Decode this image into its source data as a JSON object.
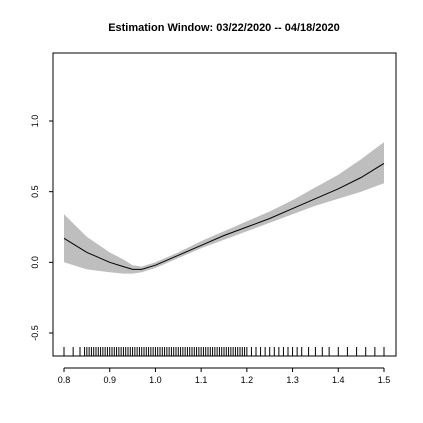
{
  "chart_data": {
    "type": "line",
    "title": "Estimation Window: 03/22/2020 -- 04/18/2020",
    "xlabel": "",
    "ylabel": "",
    "xlim": [
      0.8,
      1.5
    ],
    "ylim": [
      -0.5,
      1.0
    ],
    "x_ticks": [
      "0.8",
      "0.9",
      "1.0",
      "1.1",
      "1.2",
      "1.3",
      "1.4",
      "1.5"
    ],
    "y_ticks": [
      "-0.5",
      "0.0",
      "0.5",
      "1.0"
    ],
    "grid": false,
    "series": [
      {
        "x": [
          0.8,
          0.85,
          0.9,
          0.93,
          0.95,
          0.97,
          1.0,
          1.05,
          1.1,
          1.15,
          1.2,
          1.25,
          1.3,
          1.35,
          1.4,
          1.45,
          1.5
        ],
        "y": [
          0.17,
          0.07,
          0.0,
          -0.03,
          -0.05,
          -0.05,
          -0.02,
          0.05,
          0.12,
          0.19,
          0.25,
          0.31,
          0.38,
          0.45,
          0.52,
          0.6,
          0.7
        ],
        "lower": [
          0.0,
          -0.05,
          -0.07,
          -0.08,
          -0.08,
          -0.07,
          -0.04,
          0.03,
          0.1,
          0.16,
          0.22,
          0.28,
          0.34,
          0.4,
          0.45,
          0.5,
          0.56
        ],
        "upper": [
          0.34,
          0.18,
          0.07,
          0.02,
          -0.02,
          -0.03,
          0.0,
          0.07,
          0.15,
          0.22,
          0.29,
          0.36,
          0.44,
          0.53,
          0.62,
          0.73,
          0.85
        ]
      }
    ],
    "rug": [
      0.8,
      0.82,
      0.835,
      0.845,
      0.85,
      0.855,
      0.86,
      0.865,
      0.87,
      0.875,
      0.88,
      0.885,
      0.89,
      0.895,
      0.9,
      0.905,
      0.91,
      0.915,
      0.92,
      0.925,
      0.93,
      0.935,
      0.94,
      0.945,
      0.95,
      0.955,
      0.96,
      0.965,
      0.97,
      0.975,
      0.98,
      0.985,
      0.99,
      0.995,
      1.0,
      1.005,
      1.01,
      1.015,
      1.02,
      1.025,
      1.03,
      1.035,
      1.04,
      1.045,
      1.05,
      1.055,
      1.06,
      1.065,
      1.07,
      1.075,
      1.08,
      1.085,
      1.09,
      1.095,
      1.1,
      1.105,
      1.11,
      1.115,
      1.12,
      1.125,
      1.13,
      1.135,
      1.14,
      1.145,
      1.15,
      1.155,
      1.16,
      1.165,
      1.17,
      1.175,
      1.18,
      1.185,
      1.19,
      1.195,
      1.2,
      1.21,
      1.22,
      1.23,
      1.24,
      1.25,
      1.26,
      1.27,
      1.28,
      1.29,
      1.3,
      1.31,
      1.32,
      1.335,
      1.35,
      1.365,
      1.38,
      1.4,
      1.42,
      1.44,
      1.46,
      1.48,
      1.5
    ],
    "colors": {
      "line": "#000000",
      "band": "#bebebe",
      "rug": "#000000",
      "frame": "#000000"
    }
  }
}
